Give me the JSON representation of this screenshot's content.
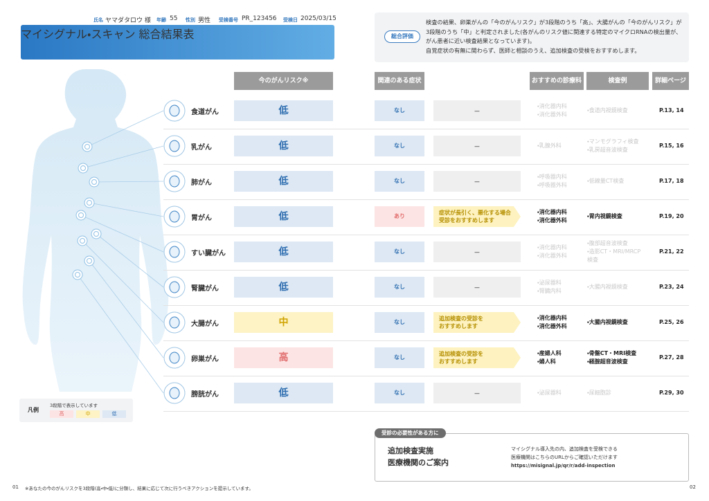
{
  "header": {
    "name_label": "氏名",
    "name": "ヤマダタロウ 様",
    "age_label": "年齢",
    "age": "55",
    "sex_label": "性別",
    "sex": "男性",
    "id_label": "受検番号",
    "id": "PR_123456",
    "date_label": "受検日",
    "date": "2025/03/15",
    "title": "マイシグナル・スキャン 総合結果表"
  },
  "summary": {
    "label": "総合評価",
    "text": "検査の結果、卵巣がんの「今のがんリスク」が3段階のうち「高」、大腸がんの「今のがんリスク」が3段階のうち「中」と判定されました(各がんのリスク値に関連する特定のマイクロRNAの検出量が、がん患者に近い検査結果となっています)。",
    "advice": "自覚症状の有無に関わらず、医師と相談のうえ、追加検査の受検をおすすめします。"
  },
  "table": {
    "columns": [
      "今のがんリスク※",
      "関連のある症状",
      "おすすめの診療科",
      "検査例",
      "詳細ページ"
    ],
    "rows": [
      {
        "name": "食道がん",
        "risk": "低",
        "symptom": "なし",
        "action": [
          "−"
        ],
        "departments": [
          "・消化器内科",
          "・消化器外科"
        ],
        "exams": [
          "・食道内視鏡検査"
        ],
        "pages": "P.13, 14"
      },
      {
        "name": "乳がん",
        "risk": "低",
        "symptom": "なし",
        "action": [
          "−"
        ],
        "departments": [
          "・乳腺外科"
        ],
        "exams": [
          "・マンモグラフィ検査",
          "・乳房超音波検査"
        ],
        "pages": "P.15, 16"
      },
      {
        "name": "肺がん",
        "risk": "低",
        "symptom": "なし",
        "action": [
          "−"
        ],
        "departments": [
          "・呼吸器内科",
          "・呼吸器外科"
        ],
        "exams": [
          "・低線量CT検査"
        ],
        "pages": "P.17, 18"
      },
      {
        "name": "胃がん",
        "risk": "低",
        "symptom": "あり",
        "action": [
          "症状が長引く、悪化する場合",
          "受診をおすすめします"
        ],
        "departments": [
          "・消化器内科",
          "・消化器外科"
        ],
        "exams": [
          "・胃内視鏡検査"
        ],
        "pages": "P.19, 20"
      },
      {
        "name": "すい臓がん",
        "risk": "低",
        "symptom": "なし",
        "action": [
          "−"
        ],
        "departments": [
          "・消化器内科",
          "・消化器外科"
        ],
        "exams": [
          "・腹部超音波検査",
          "・造影CT・MRI/MRCP",
          "検査"
        ],
        "pages": "P.21, 22"
      },
      {
        "name": "腎臓がん",
        "risk": "低",
        "symptom": "なし",
        "action": [
          "−"
        ],
        "departments": [
          "・泌尿器科",
          "・腎臓内科"
        ],
        "exams": [
          "・大腸内視鏡検査"
        ],
        "pages": "P.23, 24"
      },
      {
        "name": "大腸がん",
        "risk": "中",
        "symptom": "なし",
        "action": [
          "追加検査の受診を",
          "おすすめします"
        ],
        "departments": [
          "・消化器内科",
          "・消化器外科"
        ],
        "exams": [
          "・大腸内視鏡検査"
        ],
        "pages": "P.25, 26"
      },
      {
        "name": "卵巣がん",
        "risk": "高",
        "symptom": "なし",
        "action": [
          "追加検査の受診を",
          "おすすめします"
        ],
        "departments": [
          "・産婦人科",
          "・婦人科"
        ],
        "exams": [
          "・骨盤CT・MRI検査",
          "・経腟超音波検査"
        ],
        "pages": "P.27, 28"
      },
      {
        "name": "膀胱がん",
        "risk": "低",
        "symptom": "なし",
        "action": [
          "−"
        ],
        "departments": [
          "・泌尿器科"
        ],
        "exams": [
          "・尿細胞診"
        ],
        "pages": "P.29, 30"
      }
    ]
  },
  "legend": {
    "label": "凡例",
    "note": "3段階で表示しています",
    "items": [
      "高",
      "中",
      "低"
    ]
  },
  "guide": {
    "tag": "受診の必要性がある方に",
    "title": [
      "追加検査実施",
      "医療機関のご案内"
    ],
    "text": [
      "マイシグナル導入先の内、追加検査を受検できる",
      "医療機関はこちらのURLからご確認いただけます"
    ],
    "url": "https://misignal.jp/qr/r/add-inspection"
  },
  "footer": {
    "page_left": "01",
    "note": "※あなたの今のがんリスクを3段階(高・中・低)に分類し、結果に応じて次に行うべきアクションを提示しています。",
    "page_right": "02"
  }
}
